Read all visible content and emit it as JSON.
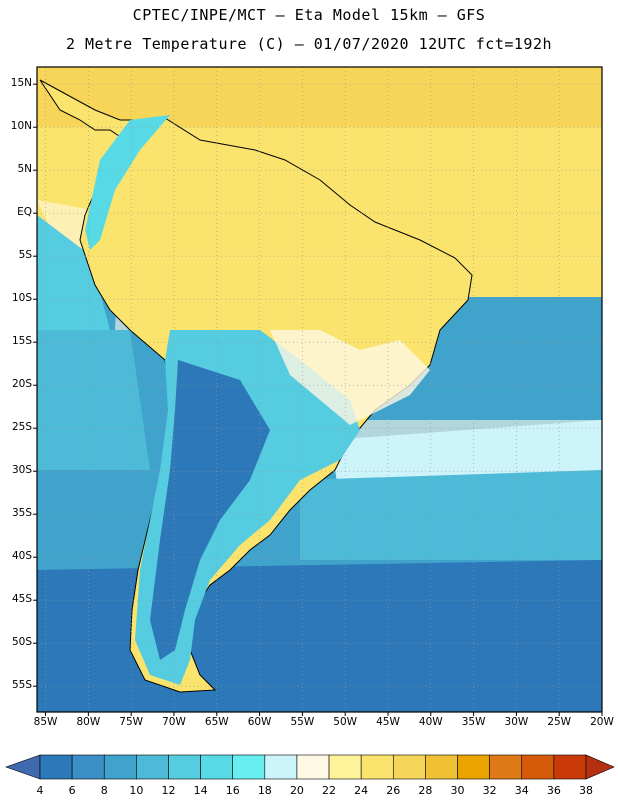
{
  "title": {
    "line1": "CPTEC/INPE/MCT –  Eta Model 15km – GFS",
    "line2": "2 Metre Temperature (C) – 01/07/2020 12UTC fct=192h"
  },
  "map": {
    "region": "South America",
    "lat_labels": [
      "15N",
      "10N",
      "5N",
      "EQ",
      "5S",
      "10S",
      "15S",
      "20S",
      "25S",
      "30S",
      "35S",
      "40S",
      "45S",
      "50S",
      "55S"
    ],
    "lon_labels": [
      "85W",
      "80W",
      "75W",
      "70W",
      "65W",
      "60W",
      "55W",
      "50W",
      "45W",
      "40W",
      "35W",
      "30W",
      "25W",
      "20W"
    ],
    "lat_range": [
      17,
      -58
    ],
    "lon_range": [
      -86,
      -20
    ]
  },
  "colorbar": {
    "levels": [
      "4",
      "6",
      "8",
      "10",
      "12",
      "14",
      "16",
      "18",
      "20",
      "22",
      "24",
      "26",
      "28",
      "30",
      "32",
      "34",
      "36",
      "38"
    ],
    "colors": [
      "#4169b0",
      "#2c78b8",
      "#3c8ec6",
      "#3fa3cc",
      "#4dbad8",
      "#55ccdf",
      "#58d9e6",
      "#66eef0",
      "#cdf3fb",
      "#fff8e4",
      "#fef29a",
      "#fbe46d",
      "#f6d558",
      "#f1c135",
      "#eaa400",
      "#e07a18",
      "#d55b0a",
      "#c93a08",
      "#b53010"
    ]
  }
}
